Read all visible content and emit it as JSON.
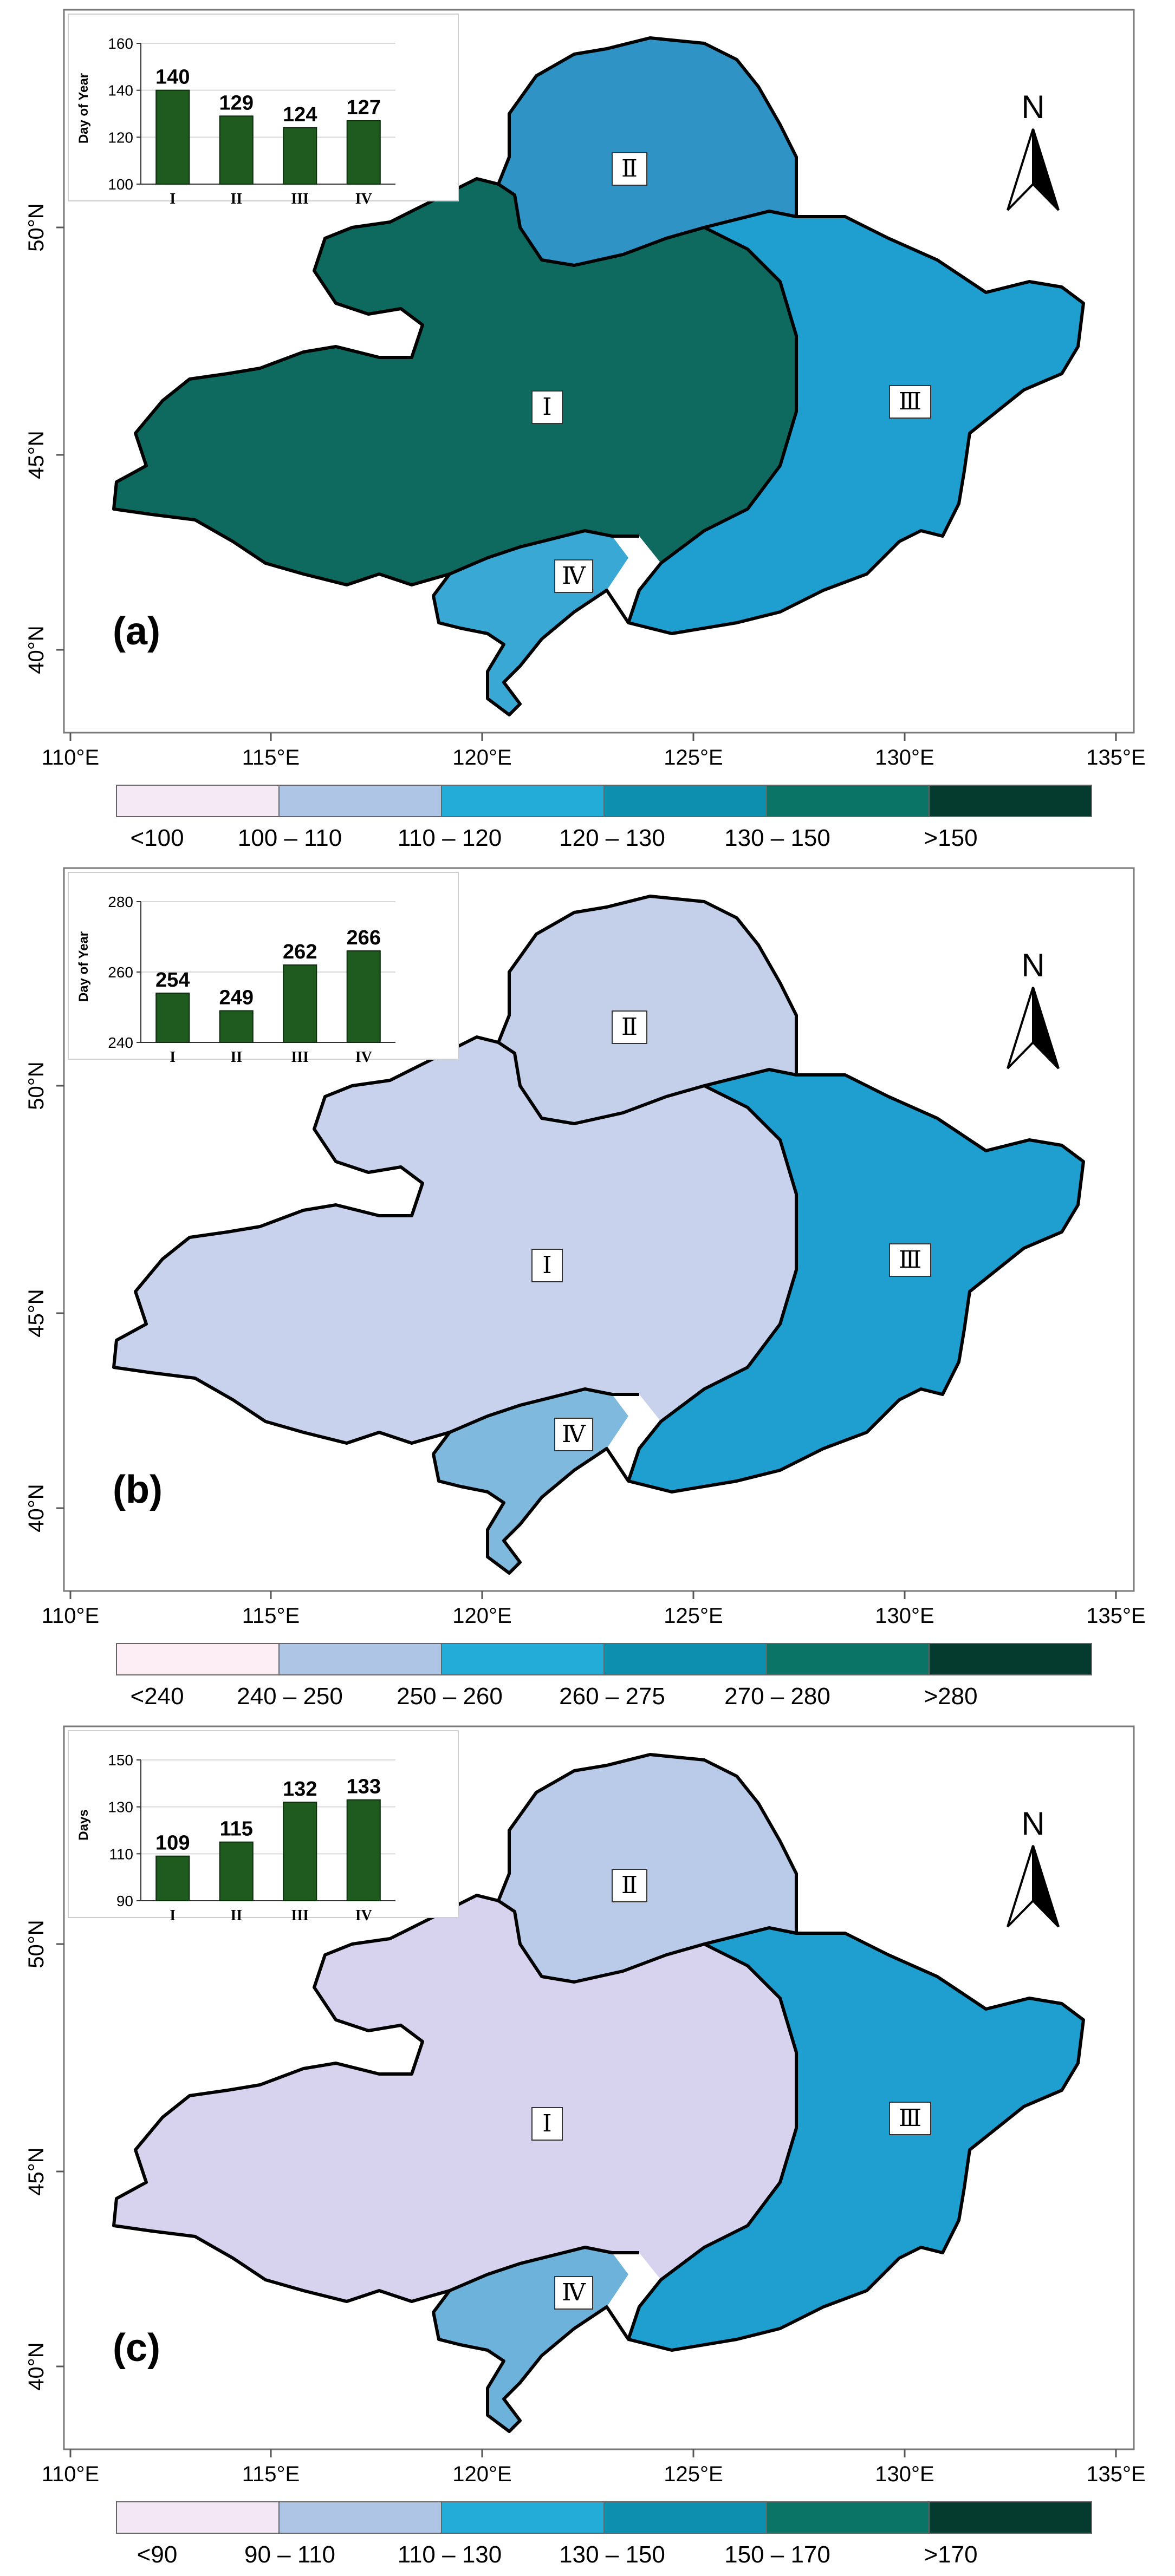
{
  "axis": {
    "lon_ticks": [
      "110°E",
      "115°E",
      "120°E",
      "125°E",
      "130°E",
      "135°E"
    ],
    "lat_ticks": [
      "40°N",
      "45°N",
      "50°N"
    ]
  },
  "north_arrow": {
    "label": "N"
  },
  "regions": [
    "I",
    "II",
    "III",
    "IV"
  ],
  "panels": [
    {
      "panel_label": "(a)",
      "inset_ylabel": "Day of Year",
      "legend": {
        "labels": [
          "<100",
          "100 – 110",
          "110 – 120",
          "120 – 130",
          "130 – 150",
          ">150"
        ],
        "colors": [
          "#f6e9f6",
          "#afc5e6",
          "#23acd7",
          "#0d8fb0",
          "#0a7466",
          "#053b2e"
        ]
      },
      "map_fill": {
        "region_I": "#0e6a5e",
        "region_II": "#2f93c6",
        "region_III": "#1e9fd0",
        "region_IV": "#3aa8d4"
      }
    },
    {
      "panel_label": "(b)",
      "inset_ylabel": "Day of Year",
      "legend": {
        "labels": [
          "<240",
          "240 – 250",
          "250 – 260",
          "260 – 275",
          "270 – 280",
          ">280"
        ],
        "colors": [
          "#fdeef6",
          "#afc5e6",
          "#23acd7",
          "#0d8fb0",
          "#0a7466",
          "#053b2e"
        ]
      },
      "map_fill": {
        "region_I": "#c9d2ec",
        "region_II": "#c4cfea",
        "region_III": "#1e9fd0",
        "region_IV": "#7fb9de"
      }
    },
    {
      "panel_label": "(c)",
      "inset_ylabel": "Days",
      "legend": {
        "labels": [
          "<90",
          "90 – 110",
          "110 – 130",
          "130 – 150",
          "150 – 170",
          ">170"
        ],
        "colors": [
          "#f3e6f5",
          "#afc5e6",
          "#23acd7",
          "#0d8fb0",
          "#0a7466",
          "#053b2e"
        ]
      },
      "map_fill": {
        "region_I": "#d7d3ee",
        "region_II": "#b9cbe8",
        "region_III": "#1e9fd0",
        "region_IV": "#6db2da"
      }
    }
  ],
  "chart_data": [
    {
      "type": "bar",
      "title": "",
      "xlabel": "",
      "ylabel": "Day of Year",
      "categories": [
        "I",
        "II",
        "III",
        "IV"
      ],
      "values": [
        140,
        129,
        124,
        127
      ],
      "ylim": [
        100,
        160
      ],
      "yticks": [
        100,
        120,
        140,
        160
      ],
      "bar_color": "#1f5a1e"
    },
    {
      "type": "bar",
      "title": "",
      "xlabel": "",
      "ylabel": "Day of Year",
      "categories": [
        "I",
        "II",
        "III",
        "IV"
      ],
      "values": [
        254,
        249,
        262,
        266
      ],
      "ylim": [
        240,
        280
      ],
      "yticks": [
        240,
        260,
        280
      ],
      "bar_color": "#1f5a1e"
    },
    {
      "type": "bar",
      "title": "",
      "xlabel": "",
      "ylabel": "Days",
      "categories": [
        "I",
        "II",
        "III",
        "IV"
      ],
      "values": [
        109,
        115,
        132,
        133
      ],
      "ylim": [
        90,
        150
      ],
      "yticks": [
        90,
        110,
        130,
        150
      ],
      "bar_color": "#1f5a1e"
    }
  ]
}
